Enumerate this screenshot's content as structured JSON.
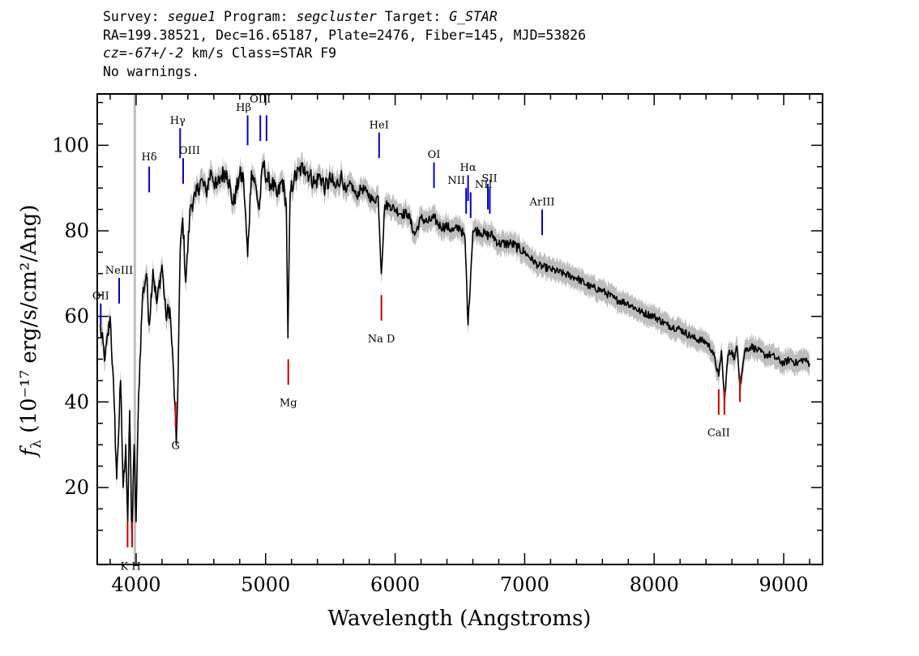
{
  "header": {
    "line1": {
      "survey_label": "Survey: ",
      "survey": "segue1",
      "program_label": " Program: ",
      "program": "segcluster",
      "target_label": " Target: ",
      "target": "G_STAR"
    },
    "line2": "RA=199.38521, Dec=16.65187, Plate=2476, Fiber=145, MJD=53826",
    "line3": {
      "cz": "cz=-67+/-2",
      "rest": " km/s Class=STAR F9"
    },
    "line4": "No warnings."
  },
  "colors": {
    "flux": "#000000",
    "error": "#bebebe",
    "emission": "#0000cc",
    "absorption": "#cc0000",
    "marker": "#bfbfbf"
  },
  "chart_data": {
    "type": "line",
    "title": "",
    "xlabel": "Wavelength (Angstroms)",
    "ylabel": "fλ (10⁻¹⁷ erg/s/cm²/Ang)",
    "xlim": [
      3700,
      9300
    ],
    "ylim": [
      2,
      112
    ],
    "xticks": [
      4000,
      5000,
      6000,
      7000,
      8000,
      9000
    ],
    "xtick_labels": [
      "4000",
      "5000",
      "6000",
      "7000",
      "8000",
      "9000"
    ],
    "yticks": [
      20,
      40,
      60,
      80,
      100
    ],
    "ytick_labels": [
      "20",
      "40",
      "60",
      "80",
      "100"
    ],
    "grid": false,
    "vertical_marker_x": 3990,
    "series": [
      {
        "x": [
          3720,
          3760,
          3800,
          3830,
          3850,
          3880,
          3900,
          3920,
          3935,
          3950,
          3968,
          3985,
          4000,
          4020,
          4050,
          4080,
          4101,
          4130,
          4160,
          4200,
          4230,
          4260,
          4290,
          4310,
          4320,
          4340,
          4360,
          4383,
          4420,
          4460,
          4500,
          4540,
          4580,
          4620,
          4660,
          4700,
          4750,
          4800,
          4830,
          4861,
          4890,
          4920,
          4950,
          4980,
          5010,
          5050,
          5090,
          5130,
          5160,
          5172,
          5190,
          5220,
          5260,
          5300,
          5340,
          5380,
          5420,
          5460,
          5500,
          5540,
          5580,
          5620,
          5660,
          5700,
          5740,
          5780,
          5830,
          5870,
          5893,
          5920,
          5960,
          6000,
          6050,
          6100,
          6150,
          6200,
          6250,
          6300,
          6350,
          6400,
          6450,
          6500,
          6540,
          6563,
          6600,
          6650,
          6700,
          6750,
          6800,
          6850,
          6900,
          6950,
          7000,
          7100,
          7200,
          7300,
          7400,
          7500,
          7600,
          7700,
          7800,
          7900,
          8000,
          8100,
          8200,
          8300,
          8400,
          8450,
          8498,
          8520,
          8542,
          8570,
          8600,
          8620,
          8640,
          8662,
          8700,
          8750,
          8800,
          8850,
          8900,
          8950,
          9000,
          9050,
          9100,
          9150,
          9200
        ],
        "values": [
          58,
          50,
          60,
          40,
          22,
          45,
          20,
          30,
          12,
          38,
          8,
          30,
          12,
          42,
          65,
          70,
          58,
          71,
          63,
          72,
          60,
          62,
          46,
          30,
          40,
          75,
          83,
          68,
          86,
          88,
          92,
          89,
          94,
          90,
          93,
          94,
          86,
          93,
          92,
          74,
          94,
          91,
          85,
          96,
          92,
          91,
          88,
          92,
          86,
          55,
          89,
          92,
          94,
          95,
          93,
          91,
          93,
          90,
          92,
          90,
          93,
          89,
          91,
          88,
          90,
          89,
          87,
          88,
          70,
          86,
          86,
          85,
          84,
          84,
          79,
          83,
          82,
          83,
          81,
          81,
          80,
          81,
          78,
          58,
          80,
          80,
          79,
          79,
          77,
          77,
          77,
          76,
          75,
          72,
          71,
          70,
          69,
          67,
          66,
          64,
          63,
          61,
          60,
          58,
          57,
          55,
          54,
          52,
          46,
          52,
          40,
          51,
          52,
          50,
          53,
          44,
          52,
          53,
          52,
          51,
          51,
          50,
          49,
          50,
          49,
          50,
          49
        ],
        "error_band": 2.5
      }
    ],
    "annotations": [
      {
        "label": "OII",
        "type": "emission",
        "x": 3727,
        "y1": 58,
        "y2": 63,
        "text_y": 64,
        "text_dx": 0
      },
      {
        "label": "NeIII",
        "type": "emission",
        "x": 3869,
        "y1": 63,
        "y2": 69,
        "text_y": 70,
        "text_dx": 0
      },
      {
        "label": "Hδ",
        "type": "emission",
        "x": 4101,
        "y1": 89,
        "y2": 95,
        "text_y": 96.5,
        "text_dx": 0
      },
      {
        "label": "Hγ",
        "type": "emission",
        "x": 4340,
        "y1": 97,
        "y2": 104,
        "text_y": 105,
        "text_dx": -3
      },
      {
        "label": "OIII",
        "type": "emission",
        "x": 4363,
        "y1": 91,
        "y2": 97,
        "text_y": 98,
        "text_dx": 8
      },
      {
        "label": "Hβ",
        "type": "emission",
        "x": 4861,
        "y1": 100,
        "y2": 107,
        "text_y": 108,
        "text_dx": -5
      },
      {
        "label": "OIII",
        "type": "emission",
        "x": 4959,
        "y1": 101,
        "y2": 107,
        "text_y": 110,
        "text_dx": 0
      },
      {
        "label": "OIII",
        "type": "emission",
        "x": 5007,
        "y1": 101,
        "y2": 107,
        "text_y": 110,
        "text_dx": 0,
        "hide_text": true
      },
      {
        "label": "HeI",
        "type": "emission",
        "x": 5876,
        "y1": 97,
        "y2": 103,
        "text_y": 104,
        "text_dx": 0
      },
      {
        "label": "OI",
        "type": "emission",
        "x": 6300,
        "y1": 90,
        "y2": 96,
        "text_y": 97,
        "text_dx": 0
      },
      {
        "label": "NII",
        "type": "emission",
        "x": 6548,
        "y1": 84,
        "y2": 90,
        "text_y": 91,
        "text_dx": -12
      },
      {
        "label": "Hα",
        "type": "emission",
        "x": 6563,
        "y1": 87,
        "y2": 93,
        "text_y": 94,
        "text_dx": 0
      },
      {
        "label": "NII",
        "type": "emission",
        "x": 6583,
        "y1": 83,
        "y2": 89,
        "text_y": 90,
        "text_dx": 16
      },
      {
        "label": "SII",
        "type": "emission",
        "x": 6716,
        "y1": 85,
        "y2": 91,
        "text_y": 91.5,
        "text_dx": 2
      },
      {
        "label": "SII",
        "type": "emission",
        "x": 6731,
        "y1": 84,
        "y2": 90,
        "text_y": 91.5,
        "text_dx": 2,
        "hide_text": true
      },
      {
        "label": "ArIII",
        "type": "emission",
        "x": 7135,
        "y1": 79,
        "y2": 85,
        "text_y": 86,
        "text_dx": 0
      },
      {
        "label": "K",
        "type": "absorption",
        "x": 3934,
        "y1": 6,
        "y2": 12,
        "text_y": 0.8,
        "text_dx": -4
      },
      {
        "label": "H",
        "type": "absorption",
        "x": 3969,
        "y1": 6,
        "y2": 12,
        "text_y": 0.8,
        "text_dx": 5
      },
      {
        "label": "G",
        "type": "absorption",
        "x": 4305,
        "y1": 34,
        "y2": 40,
        "text_y": 29,
        "text_dx": 0
      },
      {
        "label": "Mg",
        "type": "absorption",
        "x": 5175,
        "y1": 44,
        "y2": 50,
        "text_y": 39,
        "text_dx": 0
      },
      {
        "label": "Na D",
        "type": "absorption",
        "x": 5894,
        "y1": 59,
        "y2": 65,
        "text_y": 54,
        "text_dx": 0
      },
      {
        "label": "CaII",
        "type": "absorption",
        "x": 8498,
        "y1": 37,
        "y2": 43,
        "text_y": 32,
        "text_dx": 0
      },
      {
        "label": "CaII",
        "type": "absorption",
        "x": 8542,
        "y1": 37,
        "y2": 43,
        "text_y": 32,
        "text_dx": 0,
        "hide_text": true
      },
      {
        "label": "CaII",
        "type": "absorption",
        "x": 8662,
        "y1": 40,
        "y2": 46,
        "text_y": 32,
        "text_dx": 0,
        "hide_text": true
      }
    ]
  }
}
